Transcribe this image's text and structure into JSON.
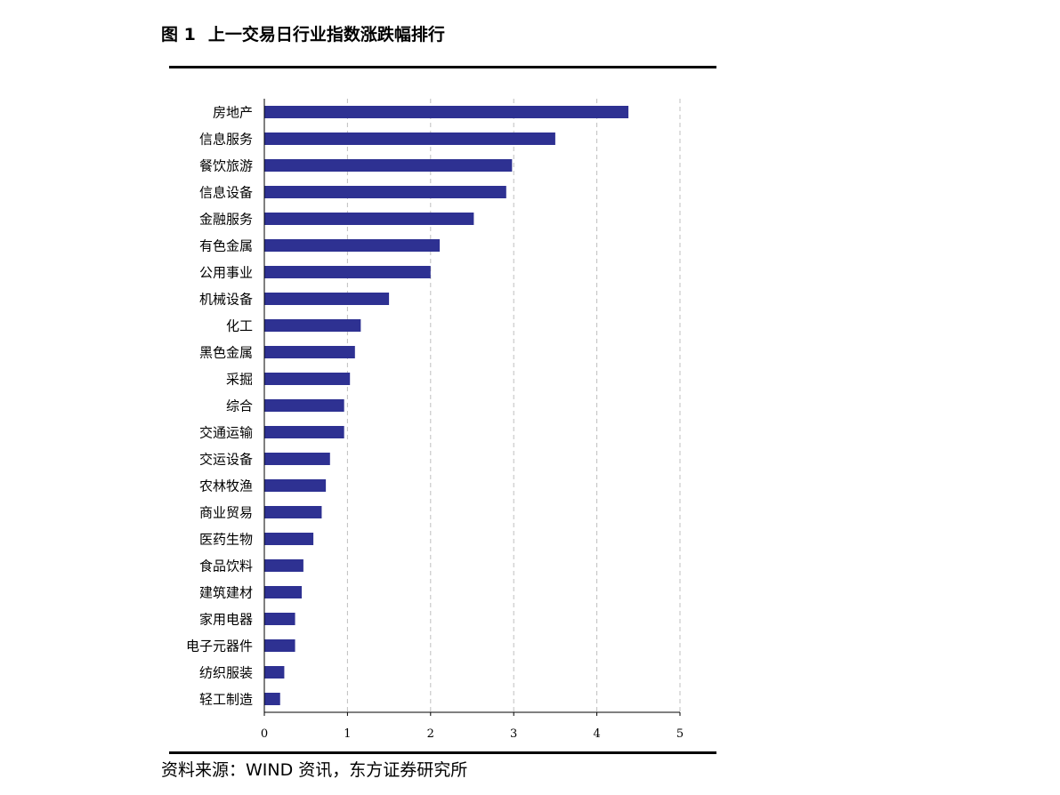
{
  "figure": {
    "number": "图 1",
    "title": "上一交易日行业指数涨跌幅排行"
  },
  "source": "资料来源：WIND 资讯，东方证券研究所",
  "colors": {
    "bar": "#2E3192",
    "grid": "#BFBFBF",
    "rule": "#000000"
  },
  "chart_data": {
    "type": "bar",
    "orientation": "horizontal",
    "categories": [
      "房地产",
      "信息服务",
      "餐饮旅游",
      "信息设备",
      "金融服务",
      "有色金属",
      "公用事业",
      "机械设备",
      "化工",
      "黑色金属",
      "采掘",
      "综合",
      "交通运输",
      "交运设备",
      "农林牧渔",
      "商业贸易",
      "医药生物",
      "食品饮料",
      "建筑建材",
      "家用电器",
      "电子元器件",
      "纺织服装",
      "轻工制造"
    ],
    "values": [
      4.38,
      3.5,
      2.98,
      2.91,
      2.52,
      2.11,
      2.0,
      1.5,
      1.16,
      1.09,
      1.03,
      0.96,
      0.96,
      0.79,
      0.74,
      0.69,
      0.59,
      0.47,
      0.45,
      0.37,
      0.37,
      0.24,
      0.19
    ],
    "xlim": [
      0,
      5
    ],
    "xticks": [
      "0",
      "1",
      "2",
      "3",
      "4",
      "5"
    ],
    "grid": "vertical dashed",
    "legend": "none"
  }
}
